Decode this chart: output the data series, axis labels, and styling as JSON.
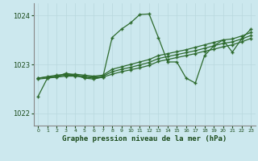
{
  "title": "Graphe pression niveau de la mer (hPa)",
  "background_color": "#cce8ee",
  "grid_color_v": "#b8d8dd",
  "grid_color_h": "#b8d8dd",
  "line_color": "#2d6a2d",
  "ylim": [
    1021.75,
    1024.25
  ],
  "yticks": [
    1022,
    1023,
    1024
  ],
  "main_series": [
    1022.35,
    1022.72,
    1022.75,
    1022.82,
    1022.78,
    1022.72,
    1022.7,
    1022.74,
    1023.55,
    1023.72,
    1023.85,
    1024.02,
    1024.03,
    1023.55,
    1023.05,
    1023.05,
    1022.72,
    1022.62,
    1023.18,
    1023.38,
    1023.5,
    1023.25,
    1023.52,
    1023.72
  ],
  "trend1": [
    1022.72,
    1022.75,
    1022.78,
    1022.8,
    1022.8,
    1022.78,
    1022.76,
    1022.78,
    1022.9,
    1022.95,
    1023.0,
    1023.05,
    1023.1,
    1023.18,
    1023.22,
    1023.26,
    1023.3,
    1023.35,
    1023.4,
    1023.45,
    1023.5,
    1023.52,
    1023.58,
    1023.65
  ],
  "trend2": [
    1022.72,
    1022.74,
    1022.76,
    1022.78,
    1022.78,
    1022.76,
    1022.74,
    1022.76,
    1022.85,
    1022.9,
    1022.94,
    1022.99,
    1023.04,
    1023.12,
    1023.16,
    1023.2,
    1023.24,
    1023.28,
    1023.33,
    1023.38,
    1023.43,
    1023.46,
    1023.52,
    1023.59
  ],
  "trend3": [
    1022.7,
    1022.72,
    1022.74,
    1022.76,
    1022.76,
    1022.74,
    1022.72,
    1022.74,
    1022.8,
    1022.85,
    1022.89,
    1022.93,
    1022.98,
    1023.06,
    1023.1,
    1023.14,
    1023.18,
    1023.22,
    1023.27,
    1023.31,
    1023.36,
    1023.4,
    1023.46,
    1023.53
  ]
}
